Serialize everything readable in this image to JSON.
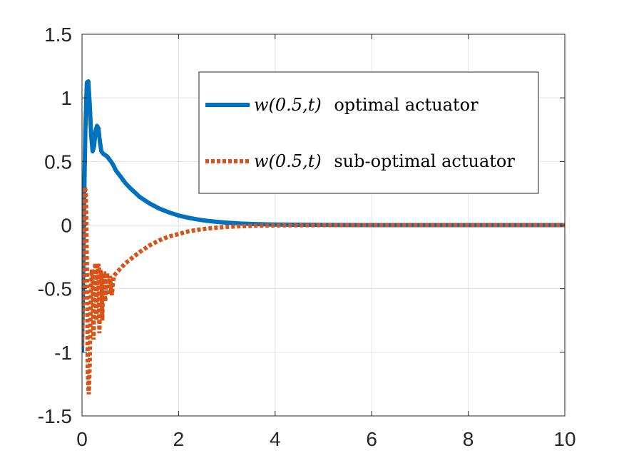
{
  "chart_data": {
    "type": "line",
    "title": "",
    "xlabel": "",
    "ylabel": "",
    "xlim": [
      0,
      10
    ],
    "ylim": [
      -1.5,
      1.5
    ],
    "xticks": [
      0,
      2,
      4,
      6,
      8,
      10
    ],
    "xtick_labels": [
      "0",
      "2",
      "4",
      "6",
      "8",
      "10"
    ],
    "yticks": [
      -1.5,
      -1,
      -0.5,
      0,
      0.5,
      1,
      1.5
    ],
    "ytick_labels": [
      "-1.5",
      "-1",
      "-0.5",
      "0",
      "0.5",
      "1",
      "1.5"
    ],
    "grid": true,
    "legend_position": "top-right",
    "series": [
      {
        "name": "w(0.5, t) optimal actuator",
        "legend_math": "w(0.5,t)",
        "legend_text": "optimal actuator",
        "color": "#0072BD",
        "style": "solid",
        "x": [
          0,
          0.02,
          0.04,
          0.07,
          0.1,
          0.13,
          0.16,
          0.19,
          0.22,
          0.25,
          0.28,
          0.31,
          0.34,
          0.37,
          0.4,
          0.44,
          0.48,
          0.52,
          0.56,
          0.6,
          0.65,
          0.7,
          0.8,
          0.9,
          1.0,
          1.2,
          1.4,
          1.6,
          1.8,
          2.0,
          2.2,
          2.4,
          2.6,
          2.8,
          3.0,
          3.3,
          3.6,
          4.0,
          5.0,
          6.0,
          7.0,
          8.0,
          9.0,
          10.0
        ],
        "y": [
          -1.0,
          -0.5,
          0.1,
          0.75,
          1.12,
          1.13,
          0.95,
          0.7,
          0.58,
          0.62,
          0.74,
          0.78,
          0.76,
          0.66,
          0.58,
          0.56,
          0.55,
          0.54,
          0.52,
          0.5,
          0.47,
          0.43,
          0.38,
          0.33,
          0.29,
          0.22,
          0.17,
          0.13,
          0.1,
          0.075,
          0.058,
          0.044,
          0.033,
          0.025,
          0.019,
          0.012,
          0.008,
          0.004,
          0.001,
          0.0,
          0.0,
          0.0,
          0.0,
          0.0
        ]
      },
      {
        "name": "w(0.5, t) sub-optimal actuator",
        "legend_math": "w(0.5,t)",
        "legend_text": "sub-optimal actuator",
        "color": "#D95319",
        "style": "dotted",
        "x": [
          0,
          0.02,
          0.04,
          0.06,
          0.08,
          0.1,
          0.12,
          0.14,
          0.16,
          0.18,
          0.2,
          0.22,
          0.24,
          0.26,
          0.28,
          0.3,
          0.32,
          0.34,
          0.36,
          0.38,
          0.4,
          0.42,
          0.44,
          0.46,
          0.48,
          0.5,
          0.52,
          0.54,
          0.56,
          0.58,
          0.6,
          0.62,
          0.64,
          0.66,
          0.7,
          0.75,
          0.8,
          0.9,
          1.0,
          1.2,
          1.4,
          1.6,
          1.8,
          2.0,
          2.2,
          2.4,
          2.6,
          2.8,
          3.0,
          3.3,
          3.6,
          4.0,
          5.0,
          6.0,
          7.0,
          8.0,
          9.0,
          10.0
        ],
        "y": [
          -0.95,
          -0.5,
          -0.1,
          0.3,
          0.25,
          -0.3,
          -1.15,
          -1.33,
          -1.1,
          -0.6,
          -0.35,
          -0.4,
          -0.9,
          -0.35,
          -0.3,
          -0.75,
          -0.32,
          -0.32,
          -0.85,
          -0.35,
          -0.35,
          -0.75,
          -0.38,
          -0.38,
          -0.6,
          -0.38,
          -0.38,
          -0.55,
          -0.45,
          -0.4,
          -0.5,
          -0.55,
          -0.45,
          -0.4,
          -0.38,
          -0.36,
          -0.34,
          -0.3,
          -0.27,
          -0.21,
          -0.16,
          -0.12,
          -0.09,
          -0.07,
          -0.05,
          -0.037,
          -0.027,
          -0.02,
          -0.014,
          -0.009,
          -0.005,
          -0.002,
          0.0,
          0.0,
          0.0,
          0.0,
          0.0,
          0.0
        ]
      }
    ]
  }
}
